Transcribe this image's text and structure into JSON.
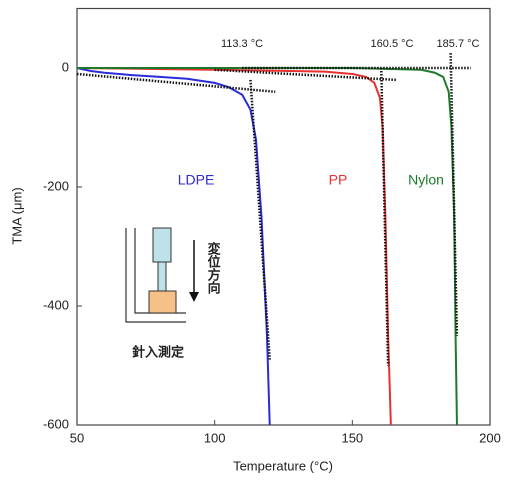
{
  "chart_data": {
    "type": "line",
    "xlabel": "Temperature (°C)",
    "ylabel": "TMA (μm)",
    "xlim": [
      50,
      200
    ],
    "xticks": [
      50,
      100,
      150,
      200
    ],
    "ylim": [
      -600,
      100
    ],
    "yticks": [
      0,
      -200,
      -400,
      -600
    ],
    "series": [
      {
        "name": "LDPE",
        "color": "#2b2bd9",
        "x": [
          50,
          55,
          60,
          70,
          80,
          90,
          100,
          105,
          110,
          113,
          115,
          117,
          119,
          120
        ],
        "values": [
          0,
          -5,
          -8,
          -12,
          -15,
          -18,
          -25,
          -32,
          -45,
          -70,
          -120,
          -250,
          -450,
          -600
        ]
      },
      {
        "name": "PP",
        "color": "#e83030",
        "x": [
          50,
          100,
          140,
          150,
          155,
          158,
          160,
          161,
          162,
          163,
          164
        ],
        "values": [
          0,
          -3,
          -6,
          -10,
          -15,
          -25,
          -50,
          -100,
          -250,
          -450,
          -600
        ]
      },
      {
        "name": "Nylon",
        "color": "#1e7a2a",
        "x": [
          50,
          100,
          150,
          175,
          180,
          183,
          185,
          186,
          187,
          187.5,
          188
        ],
        "values": [
          0,
          0,
          0,
          -3,
          -8,
          -15,
          -40,
          -100,
          -250,
          -450,
          -600
        ]
      }
    ],
    "tangent_lines": [
      {
        "x": [
          50,
          122
        ],
        "values": [
          -10,
          -40
        ]
      },
      {
        "x": [
          113,
          120
        ],
        "values": [
          -20,
          -490
        ]
      },
      {
        "x": [
          100,
          166
        ],
        "values": [
          -3,
          -20
        ]
      },
      {
        "x": [
          160.5,
          163
        ],
        "values": [
          0,
          -500
        ]
      },
      {
        "x": [
          110,
          193
        ],
        "values": [
          0,
          0
        ]
      },
      {
        "x": [
          185.7,
          188
        ],
        "values": [
          25,
          -450
        ]
      }
    ],
    "annotations": [
      "113.3 °C",
      "160.5 °C",
      "185.7 °C"
    ],
    "inset": {
      "direction": "変位方向",
      "caption": "針入測定"
    }
  }
}
